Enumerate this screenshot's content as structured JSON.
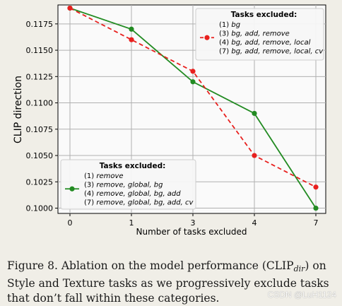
{
  "chart_data": {
    "type": "line",
    "categories": [
      "0",
      "1",
      "3",
      "4",
      "7"
    ],
    "xlabel": "Number of tasks excluded",
    "ylabel": "CLIP direction",
    "ylim": [
      0.0995,
      0.1193
    ],
    "yticks": [
      "0.1000",
      "0.1025",
      "0.1050",
      "0.1075",
      "0.1100",
      "0.1125",
      "0.1150",
      "0.1175"
    ],
    "grid": true,
    "series": [
      {
        "key": "style",
        "color": "#228b22",
        "dashed": false,
        "values": [
          0.119,
          0.117,
          0.112,
          0.109,
          0.1
        ],
        "legend_title": "Tasks excluded:",
        "legend_entries": [
          [
            "(1) ",
            "remove"
          ],
          [
            "(3) ",
            "remove, global, bg"
          ],
          [
            "(4) ",
            "remove, global, bg, add"
          ],
          [
            "(7) ",
            "remove, global, bg, add, cv"
          ]
        ],
        "legend_position": "lower-left"
      },
      {
        "key": "texture",
        "color": "#e8201e",
        "dashed": true,
        "values": [
          0.119,
          0.116,
          0.113,
          0.105,
          0.102
        ],
        "legend_title": "Tasks excluded:",
        "legend_entries": [
          [
            "(1) ",
            "bg"
          ],
          [
            "(3) ",
            "bg, add, remove"
          ],
          [
            "(4) ",
            "bg, add, remove, local"
          ],
          [
            "(7) ",
            "bg, add, remove, local, cv"
          ]
        ],
        "legend_position": "upper-right"
      }
    ]
  },
  "caption": {
    "part1": "Figure 8. Ablation on the model performance (CLIP",
    "subscript": "dir",
    "part2": ") on Style and Texture tasks as we progressively exclude tasks that don’t fall within these categories."
  },
  "watermark": "CSDN @LuH1124"
}
